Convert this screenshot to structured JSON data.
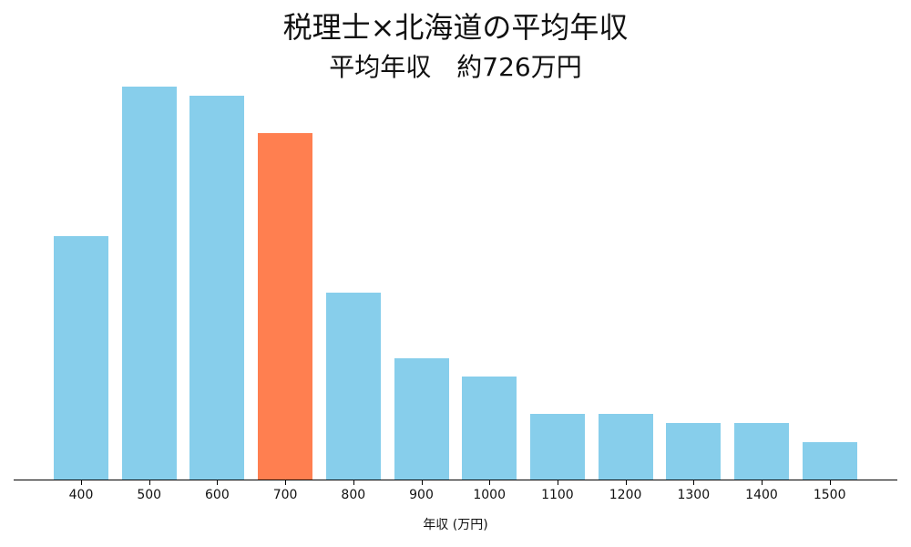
{
  "chart_data": {
    "type": "bar",
    "title": "税理士×北海道の平均年収",
    "subtitle": "平均年収　約726万円",
    "xlabel": "年収 (万円)",
    "ylabel": "",
    "categories": [
      "400",
      "500",
      "600",
      "700",
      "800",
      "900",
      "1000",
      "1100",
      "1200",
      "1300",
      "1400",
      "1500"
    ],
    "values": [
      26,
      42,
      41,
      37,
      20,
      13,
      11,
      7,
      7,
      6,
      6,
      4
    ],
    "highlight_category": "700",
    "colors": {
      "default": "#87CEEB",
      "highlight": "#FF7F50"
    },
    "ylim": [
      0,
      45
    ],
    "grid": false,
    "y_axis_visible": false,
    "legend": null
  }
}
